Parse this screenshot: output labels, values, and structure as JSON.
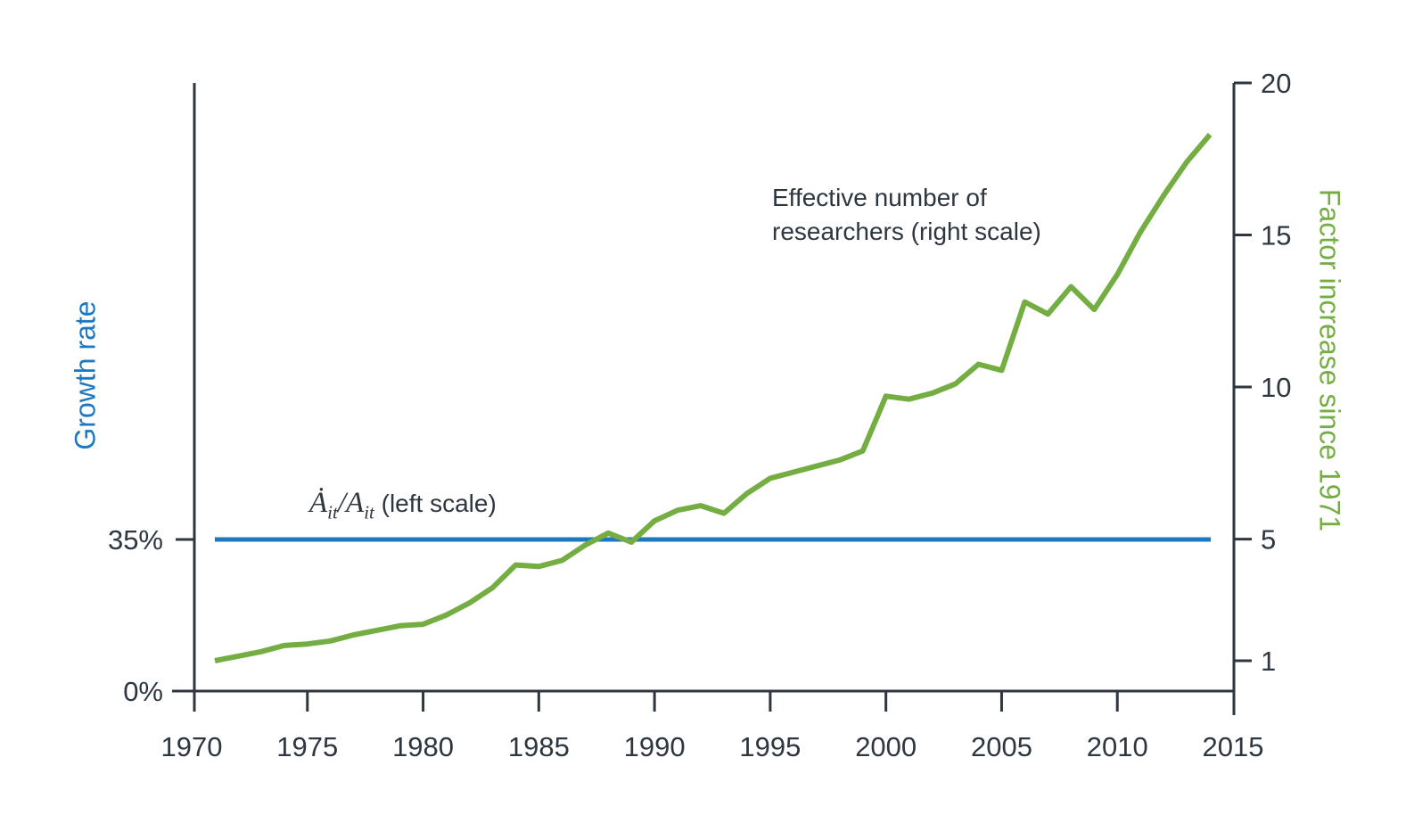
{
  "annotations": {
    "researchers_line1": "Effective number of",
    "researchers_line2": "researchers (right scale)",
    "growth_formula": {
      "numerator": "Ȧ",
      "num_sub": "it",
      "slash": "/",
      "denominator": "A",
      "den_sub": "it",
      "suffix": "(left scale)"
    }
  },
  "left_axis": {
    "title": "Growth rate",
    "color": "#1d78c2",
    "tick_labels": [
      "35%",
      "0%"
    ],
    "tick_percent_values": [
      35,
      0
    ]
  },
  "right_axis": {
    "title": "Factor increase since 1971",
    "color": "#74ae43",
    "tick_values": [
      20,
      15,
      10,
      5,
      1
    ]
  },
  "x_axis": {
    "tick_years": [
      1970,
      1975,
      1980,
      1985,
      1990,
      1995,
      2000,
      2005,
      2010,
      2015
    ],
    "range": [
      1970,
      2015
    ]
  },
  "chart_data": {
    "type": "line",
    "title": "",
    "xlabel": "",
    "left_ylabel": "Growth rate",
    "right_ylabel": "Factor increase since 1971",
    "x_range": [
      1970,
      2015
    ],
    "left_axis_percent_ticks": [
      35,
      0
    ],
    "right_axis_ticks": [
      20,
      15,
      10,
      5,
      1
    ],
    "axes_color": "#2e3640",
    "series": [
      {
        "name": "Adot/A growth rate (left scale)",
        "axis": "left",
        "color": "#1d78c2",
        "style": "constant",
        "constant_percent": 35,
        "x_start": 1971,
        "x_end": 2014
      },
      {
        "name": "Effective number of researchers (right scale)",
        "axis": "right",
        "color": "#74ae43",
        "years": [
          1971,
          1972,
          1973,
          1974,
          1975,
          1976,
          1977,
          1978,
          1979,
          1980,
          1981,
          1982,
          1983,
          1984,
          1985,
          1986,
          1987,
          1988,
          1989,
          1990,
          1991,
          1992,
          1993,
          1994,
          1995,
          1996,
          1997,
          1998,
          1999,
          2000,
          2001,
          2002,
          2003,
          2004,
          2005,
          2006,
          2007,
          2008,
          2009,
          2010,
          2011,
          2012,
          2013,
          2014
        ],
        "values": [
          1.0,
          1.15,
          1.3,
          1.5,
          1.55,
          1.65,
          1.85,
          2.0,
          2.15,
          2.2,
          2.5,
          2.9,
          3.4,
          4.15,
          4.1,
          4.3,
          4.8,
          5.2,
          4.9,
          5.6,
          5.95,
          6.1,
          5.85,
          6.5,
          7.0,
          7.2,
          7.4,
          7.6,
          7.9,
          9.7,
          9.6,
          9.8,
          10.1,
          10.75,
          10.55,
          12.8,
          12.4,
          13.3,
          12.55,
          13.7,
          15.1,
          16.3,
          17.4,
          18.3
        ]
      }
    ]
  }
}
